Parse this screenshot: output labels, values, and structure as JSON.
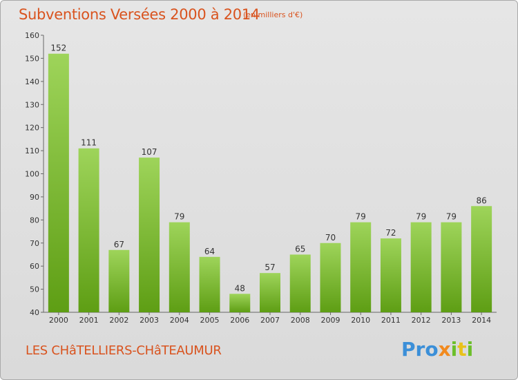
{
  "title": "Subventions Versées 2000 à 2014",
  "unit": "(en milliers d'€)",
  "commune": "LES CHâTELLIERS-CHâTEAUMUR",
  "logo": {
    "p1": "Pro",
    "p2": "x",
    "p3": "i",
    "p4": "t",
    "p5": "i"
  },
  "colors": {
    "bar_top": "#9ed45a",
    "bar_bottom": "#5e9e14",
    "title": "#d9531e"
  },
  "chart_data": {
    "type": "bar",
    "categories": [
      "2000",
      "2001",
      "2002",
      "2003",
      "2004",
      "2005",
      "2006",
      "2007",
      "2008",
      "2009",
      "2010",
      "2011",
      "2012",
      "2013",
      "2014"
    ],
    "values": [
      152,
      111,
      67,
      107,
      79,
      64,
      48,
      57,
      65,
      70,
      79,
      72,
      79,
      79,
      86
    ],
    "yticks": [
      40,
      50,
      60,
      70,
      80,
      90,
      100,
      110,
      120,
      130,
      140,
      150,
      160
    ],
    "ylim": [
      40,
      160
    ],
    "grid": false,
    "title": "Subventions Versées 2000 à 2014"
  }
}
